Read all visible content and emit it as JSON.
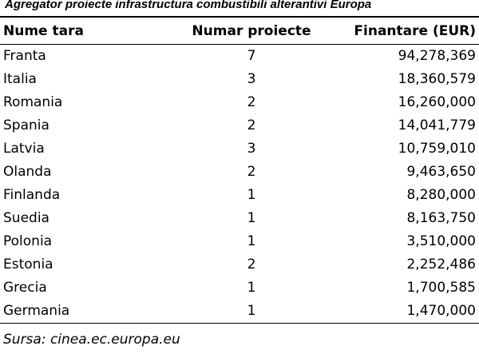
{
  "title": "Agregator proiecte infrastructura combustibili alterantivi Europa",
  "table": {
    "headers": {
      "country": "Nume tara",
      "projects": "Numar proiecte",
      "funding": "Finantare (EUR)"
    },
    "rows": [
      {
        "country": "Franta",
        "projects": "7",
        "funding": "94,278,369"
      },
      {
        "country": "Italia",
        "projects": "3",
        "funding": "18,360,579"
      },
      {
        "country": "Romania",
        "projects": "2",
        "funding": "16,260,000"
      },
      {
        "country": "Spania",
        "projects": "2",
        "funding": "14,041,779"
      },
      {
        "country": "Latvia",
        "projects": "3",
        "funding": "10,759,010"
      },
      {
        "country": "Olanda",
        "projects": "2",
        "funding": "9,463,650"
      },
      {
        "country": "Finlanda",
        "projects": "1",
        "funding": "8,280,000"
      },
      {
        "country": "Suedia",
        "projects": "1",
        "funding": "8,163,750"
      },
      {
        "country": "Polonia",
        "projects": "1",
        "funding": "3,510,000"
      },
      {
        "country": "Estonia",
        "projects": "2",
        "funding": "2,252,486"
      },
      {
        "country": "Grecia",
        "projects": "1",
        "funding": "1,700,585"
      },
      {
        "country": "Germania",
        "projects": "1",
        "funding": "1,470,000"
      }
    ]
  },
  "source": "Sursa: cinea.ec.europa.eu"
}
